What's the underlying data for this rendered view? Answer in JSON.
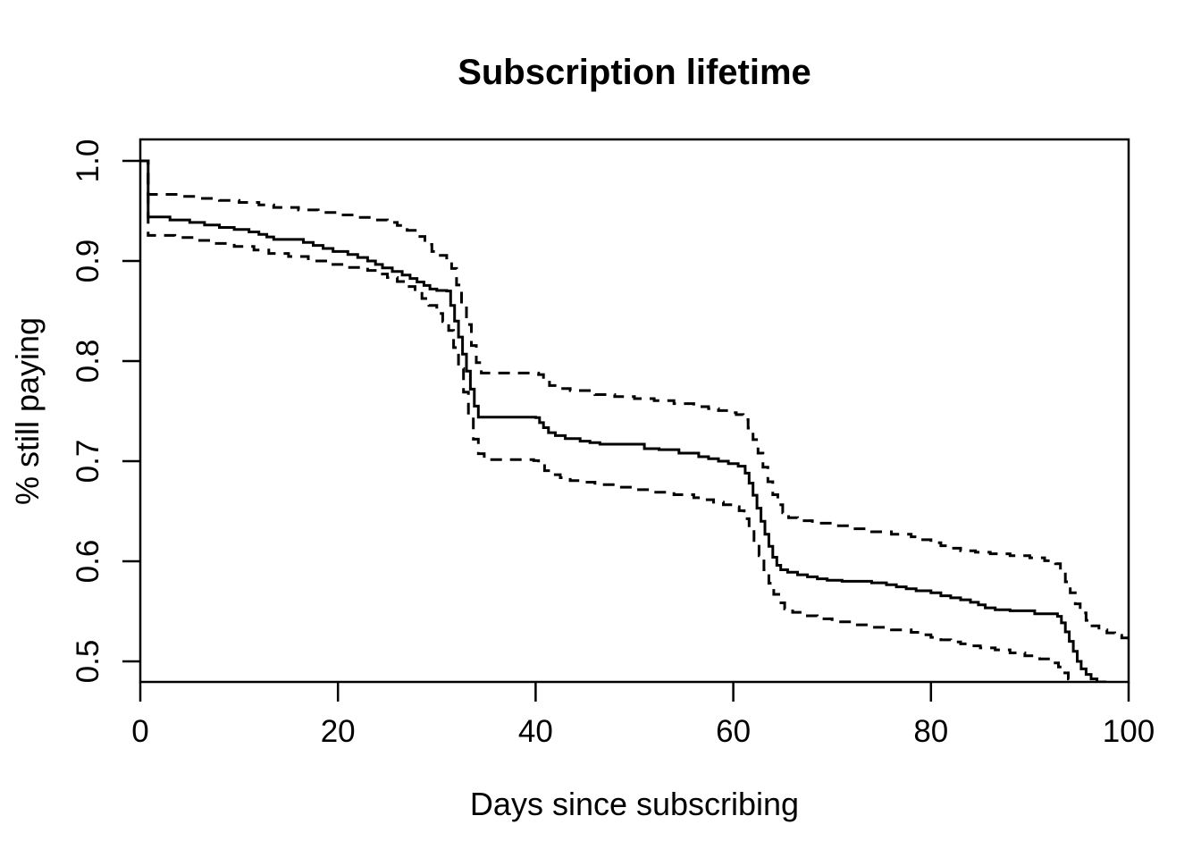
{
  "page": {
    "background": "#ffffff"
  },
  "chart_data": {
    "type": "line",
    "subtype": "kaplan-meier-survival-curve",
    "title": "Subscription lifetime",
    "xlabel": "Days since subscribing",
    "ylabel": "% still paying",
    "xlim": [
      0,
      100
    ],
    "ylim": [
      0.478,
      1.021
    ],
    "xticks": [
      0,
      20,
      40,
      60,
      80,
      100
    ],
    "xtick_labels": [
      "0",
      "20",
      "40",
      "60",
      "80",
      "100"
    ],
    "yticks": [
      1.0,
      0.9,
      0.8,
      0.7,
      0.6,
      0.5
    ],
    "ytick_labels": [
      "1.0",
      "0.9",
      "0.8",
      "0.7",
      "0.6",
      "0.5"
    ],
    "grid": false,
    "legend": "none",
    "line_color": "#000000",
    "background": "#ffffff",
    "series": [
      {
        "name": "survival-estimate",
        "style": "solid",
        "step": true,
        "points": [
          [
            0,
            1.0
          ],
          [
            0.8,
            0.944
          ],
          [
            3,
            0.941
          ],
          [
            5,
            0.9385
          ],
          [
            6.5,
            0.936
          ],
          [
            8,
            0.9335
          ],
          [
            9.5,
            0.9315
          ],
          [
            11,
            0.929
          ],
          [
            12,
            0.9265
          ],
          [
            12.8,
            0.924
          ],
          [
            13.5,
            0.9215
          ],
          [
            16.5,
            0.9185
          ],
          [
            17.5,
            0.9155
          ],
          [
            18.5,
            0.9125
          ],
          [
            19.5,
            0.9095
          ],
          [
            21,
            0.9065
          ],
          [
            22,
            0.9035
          ],
          [
            23,
            0.9
          ],
          [
            23.8,
            0.8965
          ],
          [
            24.5,
            0.893
          ],
          [
            25.5,
            0.8895
          ],
          [
            26.5,
            0.886
          ],
          [
            27.3,
            0.8825
          ],
          [
            28,
            0.879
          ],
          [
            28.7,
            0.8755
          ],
          [
            29.3,
            0.872
          ],
          [
            30,
            0.8705
          ],
          [
            31,
            0.87
          ],
          [
            31.4,
            0.8555
          ],
          [
            31.8,
            0.84
          ],
          [
            32.2,
            0.824
          ],
          [
            32.6,
            0.807
          ],
          [
            33,
            0.79
          ],
          [
            33.4,
            0.772
          ],
          [
            33.8,
            0.755
          ],
          [
            34.2,
            0.744
          ],
          [
            40,
            0.7435
          ],
          [
            40.4,
            0.7385
          ],
          [
            40.8,
            0.7335
          ],
          [
            41.3,
            0.7285
          ],
          [
            42,
            0.7255
          ],
          [
            43,
            0.7225
          ],
          [
            44.5,
            0.72
          ],
          [
            45.5,
            0.7185
          ],
          [
            46.5,
            0.717
          ],
          [
            51,
            0.7125
          ],
          [
            52.5,
            0.7115
          ],
          [
            54.5,
            0.708
          ],
          [
            56.5,
            0.7045
          ],
          [
            57.5,
            0.7025
          ],
          [
            58.5,
            0.7
          ],
          [
            59.5,
            0.6975
          ],
          [
            60.5,
            0.695
          ],
          [
            61.2,
            0.688
          ],
          [
            61.6,
            0.678
          ],
          [
            62,
            0.666
          ],
          [
            62.4,
            0.653
          ],
          [
            62.8,
            0.64
          ],
          [
            63.2,
            0.627
          ],
          [
            63.6,
            0.615
          ],
          [
            64,
            0.604
          ],
          [
            64.4,
            0.596
          ],
          [
            64.8,
            0.5915
          ],
          [
            65.5,
            0.589
          ],
          [
            66.5,
            0.5865
          ],
          [
            67.5,
            0.5845
          ],
          [
            68.5,
            0.5825
          ],
          [
            69.5,
            0.581
          ],
          [
            71,
            0.58
          ],
          [
            74,
            0.5785
          ],
          [
            75.5,
            0.5765
          ],
          [
            76.5,
            0.5745
          ],
          [
            77.5,
            0.5725
          ],
          [
            78.5,
            0.5705
          ],
          [
            80,
            0.5685
          ],
          [
            81,
            0.5655
          ],
          [
            82,
            0.5635
          ],
          [
            83,
            0.5615
          ],
          [
            84,
            0.559
          ],
          [
            84.8,
            0.5565
          ],
          [
            85.5,
            0.5535
          ],
          [
            86.5,
            0.5515
          ],
          [
            88,
            0.5505
          ],
          [
            90.5,
            0.5475
          ],
          [
            92.8,
            0.545
          ],
          [
            93.2,
            0.5385
          ],
          [
            93.6,
            0.5295
          ],
          [
            94,
            0.52
          ],
          [
            94.4,
            0.51
          ],
          [
            94.8,
            0.5
          ],
          [
            95.2,
            0.4925
          ],
          [
            95.7,
            0.487
          ],
          [
            96.2,
            0.4825
          ],
          [
            96.8,
            0.4795
          ],
          [
            97.6,
            0.4785
          ]
        ]
      },
      {
        "name": "upper-confidence-band",
        "style": "dashed",
        "step": true,
        "points": [
          [
            0,
            1.0
          ],
          [
            0.8,
            0.9665
          ],
          [
            4,
            0.9645
          ],
          [
            6,
            0.9625
          ],
          [
            8,
            0.9605
          ],
          [
            10,
            0.9585
          ],
          [
            12,
            0.956
          ],
          [
            13.5,
            0.9535
          ],
          [
            16,
            0.951
          ],
          [
            18,
            0.9485
          ],
          [
            20,
            0.946
          ],
          [
            22,
            0.9435
          ],
          [
            23.5,
            0.941
          ],
          [
            25,
            0.9385
          ],
          [
            26,
            0.9355
          ],
          [
            27,
            0.9305
          ],
          [
            28,
            0.9245
          ],
          [
            28.8,
            0.9165
          ],
          [
            29.5,
            0.9095
          ],
          [
            30.2,
            0.9055
          ],
          [
            31,
            0.903
          ],
          [
            31.5,
            0.8925
          ],
          [
            32,
            0.876
          ],
          [
            32.5,
            0.857
          ],
          [
            33,
            0.8365
          ],
          [
            33.5,
            0.8155
          ],
          [
            34,
            0.7985
          ],
          [
            34.5,
            0.788
          ],
          [
            40.3,
            0.7865
          ],
          [
            40.8,
            0.7805
          ],
          [
            41.4,
            0.7755
          ],
          [
            42.2,
            0.7725
          ],
          [
            43.5,
            0.7705
          ],
          [
            46,
            0.7665
          ],
          [
            48,
            0.7645
          ],
          [
            50,
            0.7625
          ],
          [
            52,
            0.7605
          ],
          [
            54,
            0.7575
          ],
          [
            56,
            0.7545
          ],
          [
            57.5,
            0.7525
          ],
          [
            58.5,
            0.7505
          ],
          [
            59.5,
            0.7485
          ],
          [
            60.3,
            0.7465
          ],
          [
            61,
            0.7415
          ],
          [
            61.5,
            0.733
          ],
          [
            62,
            0.7215
          ],
          [
            62.5,
            0.708
          ],
          [
            63,
            0.694
          ],
          [
            63.5,
            0.6795
          ],
          [
            64,
            0.6665
          ],
          [
            64.5,
            0.6565
          ],
          [
            65,
            0.6485
          ],
          [
            65.6,
            0.6435
          ],
          [
            66.5,
            0.6405
          ],
          [
            68,
            0.638
          ],
          [
            70,
            0.6355
          ],
          [
            72,
            0.6325
          ],
          [
            74,
            0.6295
          ],
          [
            76,
            0.627
          ],
          [
            78,
            0.6245
          ],
          [
            79,
            0.6215
          ],
          [
            80,
            0.6185
          ],
          [
            81,
            0.6155
          ],
          [
            82,
            0.613
          ],
          [
            83,
            0.6105
          ],
          [
            84.5,
            0.609
          ],
          [
            86,
            0.6075
          ],
          [
            88,
            0.6055
          ],
          [
            90,
            0.6035
          ],
          [
            91.5,
            0.6005
          ],
          [
            92.6,
            0.5975
          ],
          [
            93.1,
            0.5895
          ],
          [
            93.6,
            0.5795
          ],
          [
            94.1,
            0.5685
          ],
          [
            94.6,
            0.5575
          ],
          [
            95.1,
            0.5485
          ],
          [
            95.7,
            0.541
          ],
          [
            96.3,
            0.5355
          ],
          [
            97,
            0.5315
          ],
          [
            97.8,
            0.5285
          ],
          [
            98.6,
            0.526
          ],
          [
            99.3,
            0.5235
          ],
          [
            100,
            0.5215
          ]
        ]
      },
      {
        "name": "lower-confidence-band",
        "style": "dashed",
        "step": true,
        "points": [
          [
            0,
            1.0
          ],
          [
            0.8,
            0.9255
          ],
          [
            3.5,
            0.9235
          ],
          [
            5.5,
            0.9205
          ],
          [
            7.5,
            0.9175
          ],
          [
            9.5,
            0.9145
          ],
          [
            11.5,
            0.911
          ],
          [
            13,
            0.9075
          ],
          [
            15,
            0.9045
          ],
          [
            17,
            0.9
          ],
          [
            19,
            0.8965
          ],
          [
            21,
            0.8935
          ],
          [
            23,
            0.8905
          ],
          [
            24,
            0.887
          ],
          [
            25,
            0.8835
          ],
          [
            26,
            0.8795
          ],
          [
            27,
            0.8745
          ],
          [
            27.8,
            0.869
          ],
          [
            28.5,
            0.8625
          ],
          [
            29.2,
            0.8555
          ],
          [
            30,
            0.8475
          ],
          [
            30.6,
            0.8395
          ],
          [
            31.2,
            0.8305
          ],
          [
            31.7,
            0.8135
          ],
          [
            32.2,
            0.7925
          ],
          [
            32.7,
            0.769
          ],
          [
            33.2,
            0.7445
          ],
          [
            33.7,
            0.722
          ],
          [
            34.2,
            0.7075
          ],
          [
            34.8,
            0.7015
          ],
          [
            39.8,
            0.7005
          ],
          [
            40.3,
            0.6955
          ],
          [
            40.9,
            0.6905
          ],
          [
            41.5,
            0.6865
          ],
          [
            42.5,
            0.6835
          ],
          [
            43.5,
            0.6805
          ],
          [
            44.5,
            0.679
          ],
          [
            46,
            0.6765
          ],
          [
            48,
            0.674
          ],
          [
            50,
            0.6715
          ],
          [
            52,
            0.669
          ],
          [
            54,
            0.6665
          ],
          [
            56,
            0.6635
          ],
          [
            57,
            0.6615
          ],
          [
            58,
            0.659
          ],
          [
            59,
            0.6565
          ],
          [
            60,
            0.6545
          ],
          [
            60.6,
            0.6505
          ],
          [
            61.1,
            0.6425
          ],
          [
            61.6,
            0.632
          ],
          [
            62.1,
            0.6195
          ],
          [
            62.6,
            0.6055
          ],
          [
            63.1,
            0.5915
          ],
          [
            63.6,
            0.578
          ],
          [
            64.1,
            0.567
          ],
          [
            64.6,
            0.5585
          ],
          [
            65.2,
            0.5525
          ],
          [
            66,
            0.549
          ],
          [
            67,
            0.5455
          ],
          [
            68.5,
            0.5425
          ],
          [
            70,
            0.5395
          ],
          [
            72,
            0.5365
          ],
          [
            74,
            0.534
          ],
          [
            76,
            0.5315
          ],
          [
            78,
            0.529
          ],
          [
            79,
            0.5265
          ],
          [
            80,
            0.524
          ],
          [
            81,
            0.5215
          ],
          [
            82,
            0.5195
          ],
          [
            83,
            0.5175
          ],
          [
            84,
            0.5155
          ],
          [
            85,
            0.5135
          ],
          [
            86.5,
            0.5115
          ],
          [
            88,
            0.5085
          ],
          [
            89.5,
            0.5055
          ],
          [
            91,
            0.5025
          ],
          [
            92.2,
            0.4985
          ],
          [
            92.9,
            0.4945
          ],
          [
            93.4,
            0.4885
          ],
          [
            93.9,
            0.4825
          ],
          [
            94.4,
            0.4785
          ]
        ]
      }
    ]
  }
}
